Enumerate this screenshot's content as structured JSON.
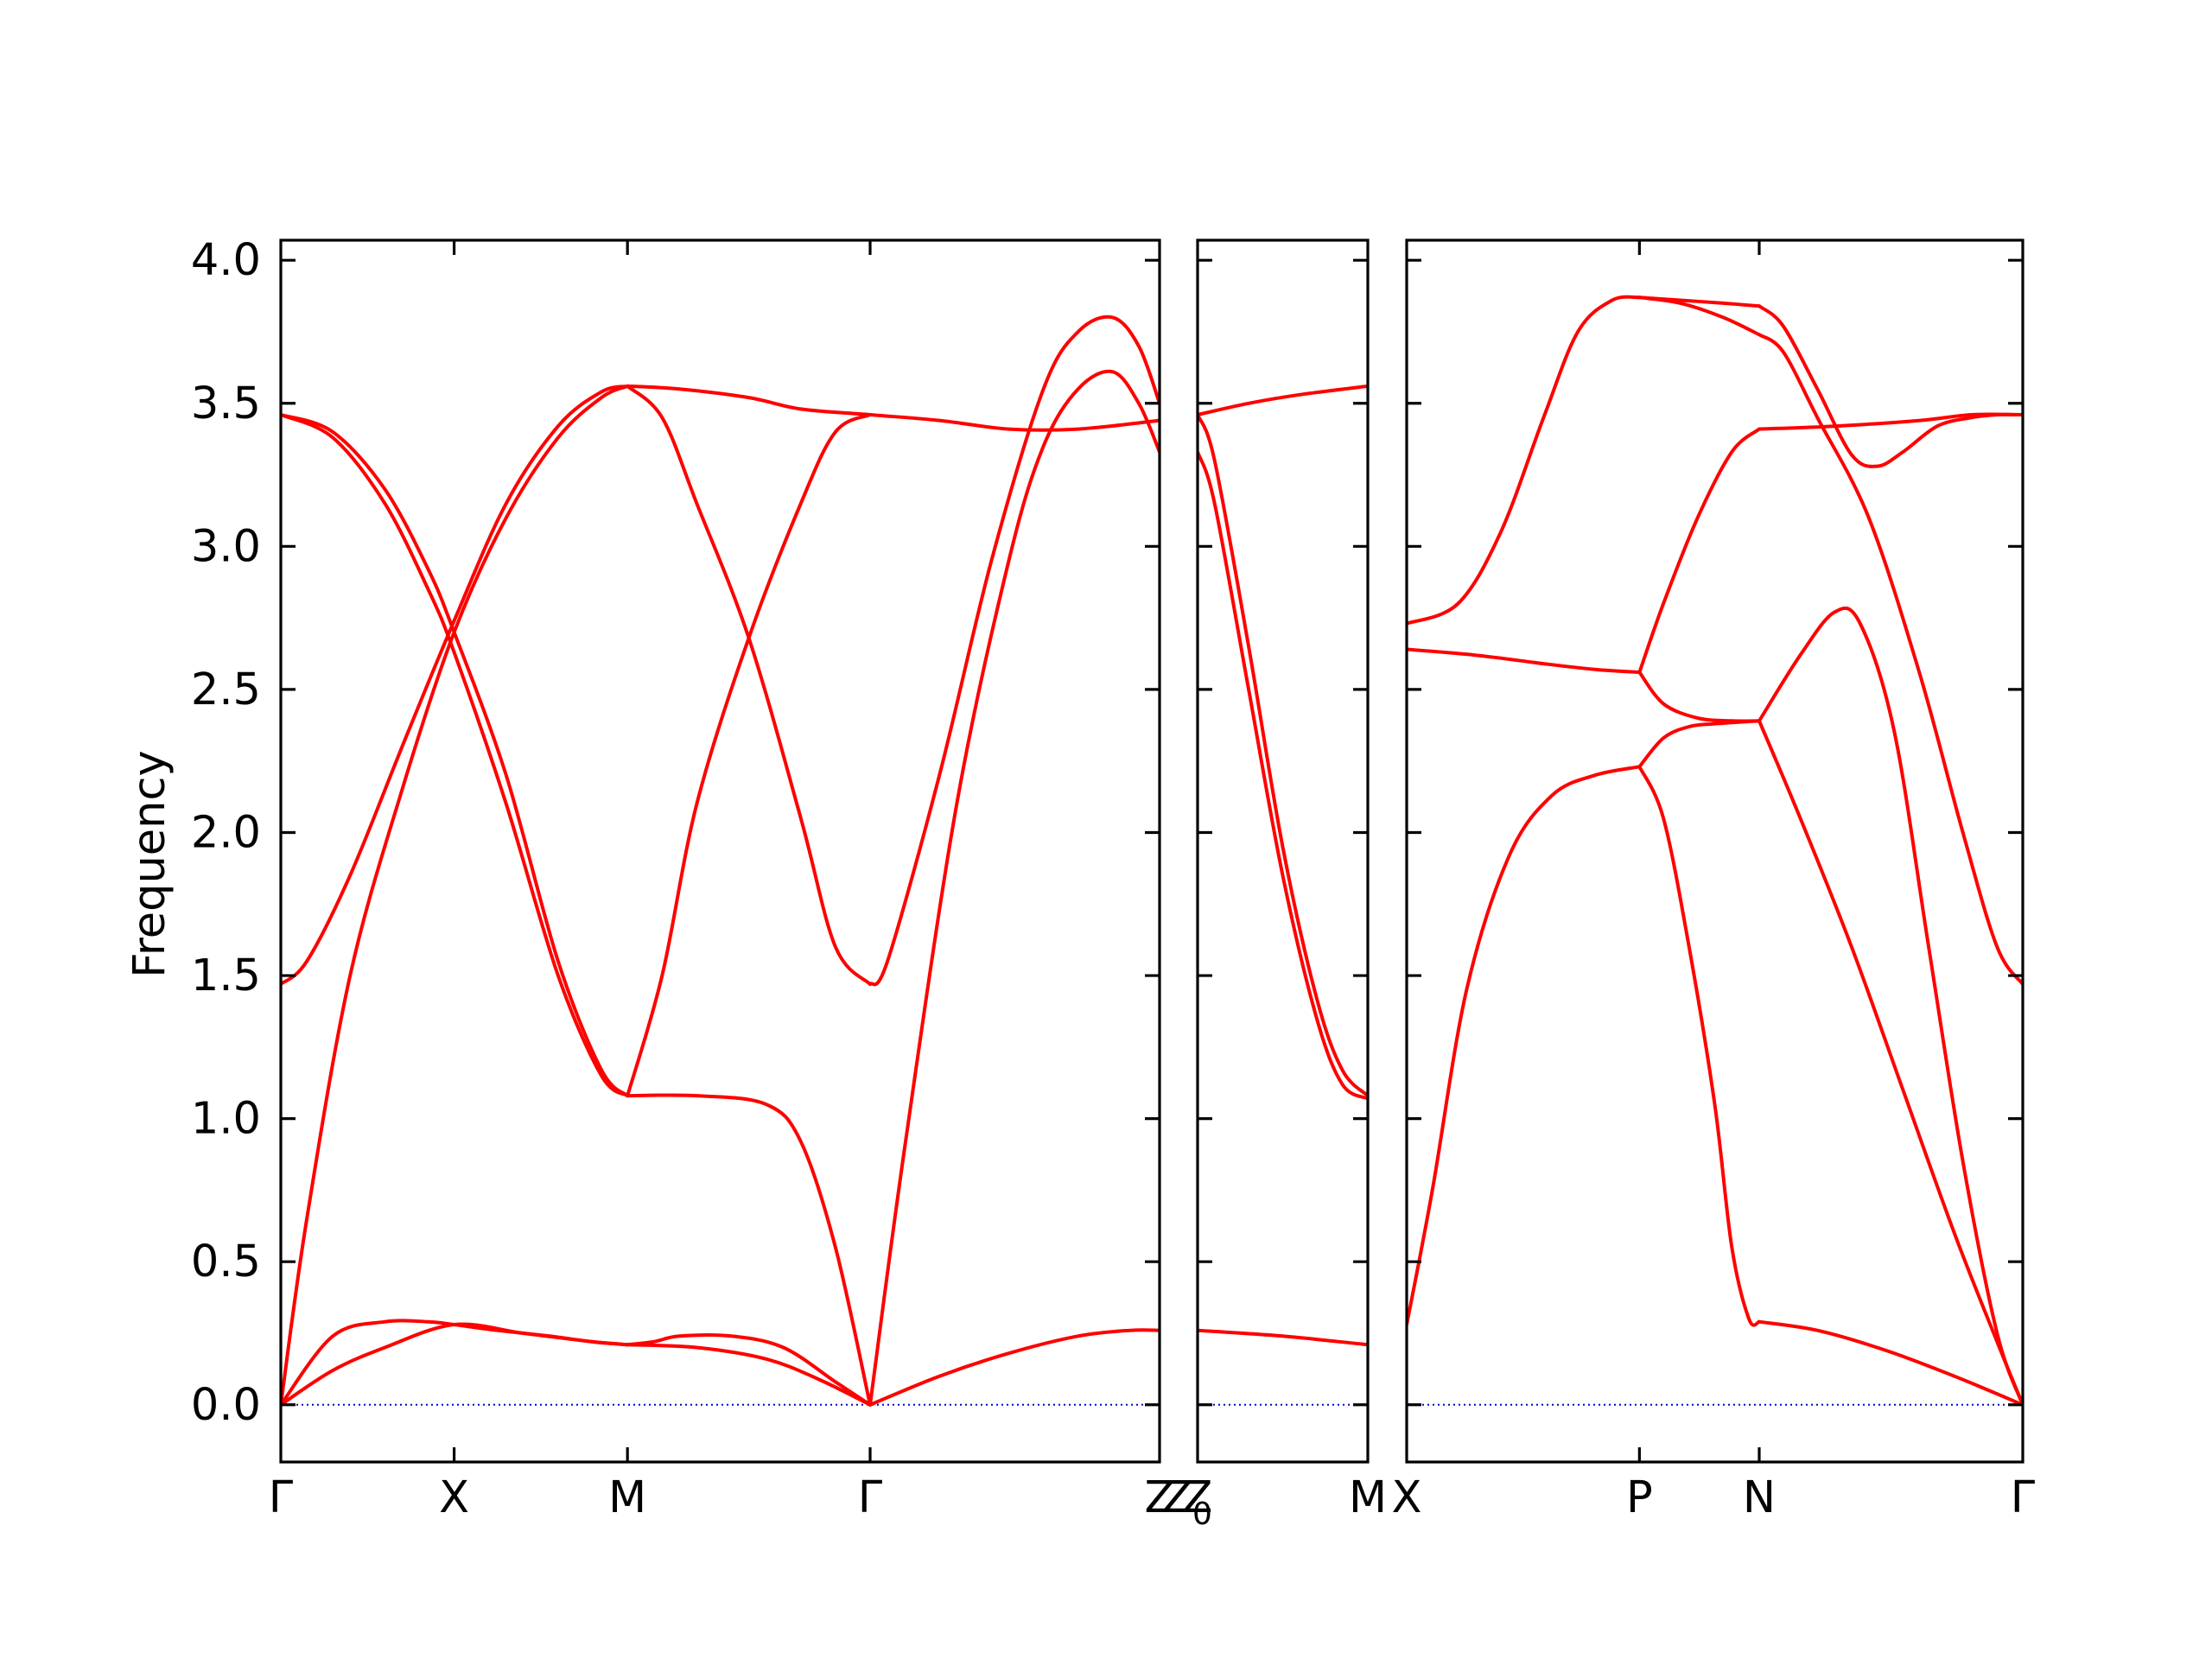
{
  "chart_data": {
    "type": "line",
    "ylabel": "Frequency",
    "ylim": [
      -0.2,
      4.07
    ],
    "yticks": [
      "0.0",
      "0.5",
      "1.0",
      "1.5",
      "2.0",
      "2.5",
      "3.0",
      "3.5",
      "4.0"
    ],
    "colors": {
      "bands": "#ff0000",
      "zero_line": "#0000cd"
    },
    "panels": [
      {
        "name": "path-1",
        "xrange": [
          0,
          5.07
        ],
        "ticks": [
          {
            "x": 0,
            "label": "Γ"
          },
          {
            "x": 1.0,
            "label": "X"
          },
          {
            "x": 2.0,
            "label": "M"
          },
          {
            "x": 3.4,
            "label": "Γ"
          },
          {
            "x": 5.07,
            "label": "Z"
          }
        ],
        "bands": [
          {
            "x": [
              0,
              0.3,
              0.6,
              0.85,
              1.0,
              1.25,
              1.55,
              1.8,
              2.0
            ],
            "y": [
              0,
              0.24,
              0.29,
              0.29,
              0.28,
              0.26,
              0.24,
              0.22,
              0.21
            ]
          },
          {
            "x": [
              0,
              0.3,
              0.6,
              1.0,
              1.4,
              1.8,
              2.0
            ],
            "y": [
              0,
              0.12,
              0.2,
              0.28,
              0.25,
              0.22,
              0.21
            ]
          },
          {
            "x": [
              2.0,
              2.15,
              2.3,
              2.6,
              2.9,
              3.2,
              3.4
            ],
            "y": [
              0.21,
              0.22,
              0.24,
              0.24,
              0.2,
              0.08,
              0
            ]
          },
          {
            "x": [
              2.0,
              2.4,
              2.8,
              3.1,
              3.4
            ],
            "y": [
              0.21,
              0.2,
              0.16,
              0.09,
              0
            ]
          },
          {
            "x": [
              3.4,
              3.8,
              4.2,
              4.6,
              4.9,
              5.07
            ],
            "y": [
              0,
              0.1,
              0.18,
              0.24,
              0.26,
              0.26
            ]
          },
          {
            "x": [
              0,
              0.15,
              0.4,
              0.7,
              1.0,
              1.3,
              1.6,
              1.85,
              2.0
            ],
            "y": [
              0,
              0.65,
              1.5,
              2.15,
              2.7,
              3.1,
              3.38,
              3.52,
              3.56
            ]
          },
          {
            "x": [
              0,
              0.15,
              0.4,
              0.7,
              1.0,
              1.3,
              1.6,
              1.85,
              2.0
            ],
            "y": [
              1.47,
              1.55,
              1.85,
              2.3,
              2.74,
              3.15,
              3.42,
              3.54,
              3.56
            ]
          },
          {
            "x": [
              0,
              0.3,
              0.6,
              0.85,
              1.0,
              1.3,
              1.6,
              1.85,
              2.0
            ],
            "y": [
              3.46,
              3.38,
              3.15,
              2.85,
              2.63,
              2.1,
              1.5,
              1.15,
              1.08
            ]
          },
          {
            "x": [
              0,
              0.3,
              0.6,
              0.85,
              1.0,
              1.3,
              1.6,
              1.85,
              2.0
            ],
            "y": [
              3.46,
              3.4,
              3.2,
              2.92,
              2.7,
              2.2,
              1.55,
              1.17,
              1.08
            ]
          },
          {
            "x": [
              2.0,
              2.3,
              2.7,
              3.0,
              3.4,
              3.8,
              4.2,
              4.6,
              5.07
            ],
            "y": [
              3.56,
              3.55,
              3.52,
              3.48,
              3.46,
              3.44,
              3.41,
              3.41,
              3.44
            ]
          },
          {
            "x": [
              2.0,
              2.2,
              2.4,
              2.7,
              3.0,
              3.2,
              3.4
            ],
            "y": [
              3.56,
              3.45,
              3.15,
              2.68,
              2.05,
              1.6,
              1.47
            ]
          },
          {
            "x": [
              2.0,
              2.2,
              2.4,
              2.7,
              3.0,
              3.2,
              3.4
            ],
            "y": [
              1.08,
              1.5,
              2.1,
              2.68,
              3.15,
              3.4,
              3.46
            ]
          },
          {
            "x": [
              2.0,
              2.4,
              2.8,
              3.0,
              3.2,
              3.4
            ],
            "y": [
              1.08,
              1.08,
              1.05,
              0.92,
              0.55,
              0
            ]
          },
          {
            "x": [
              3.4,
              3.5,
              3.8,
              4.1,
              4.4,
              4.6,
              4.8,
              4.95,
              5.07
            ],
            "y": [
              1.47,
              1.55,
              2.2,
              2.95,
              3.55,
              3.75,
              3.8,
              3.7,
              3.5
            ]
          },
          {
            "x": [
              3.4,
              3.6,
              3.9,
              4.2,
              4.4,
              4.6,
              4.8,
              4.95,
              5.07
            ],
            "y": [
              0,
              0.9,
              2.1,
              2.95,
              3.35,
              3.55,
              3.61,
              3.5,
              3.33
            ]
          }
        ]
      },
      {
        "name": "path-2",
        "xrange": [
          0,
          1
        ],
        "ticks": [
          {
            "x": 0,
            "label": "Z"
          },
          {
            "x": 1,
            "label": "M"
          }
        ],
        "bands": [
          {
            "x": [
              0,
              0.5,
              1
            ],
            "y": [
              0.26,
              0.24,
              0.21
            ]
          },
          {
            "x": [
              0,
              0.3,
              0.6,
              1
            ],
            "y": [
              3.46,
              3.5,
              3.53,
              3.56
            ]
          },
          {
            "x": [
              0,
              0.1,
              0.3,
              0.5,
              0.7,
              0.85,
              1
            ],
            "y": [
              3.46,
              3.3,
              2.65,
              1.95,
              1.42,
              1.17,
              1.08
            ]
          },
          {
            "x": [
              0,
              0.1,
              0.3,
              0.5,
              0.7,
              0.85,
              1
            ],
            "y": [
              3.33,
              3.15,
              2.5,
              1.85,
              1.35,
              1.12,
              1.07
            ]
          }
        ]
      },
      {
        "name": "path-3",
        "xrange": [
          0,
          3.6
        ],
        "ticks": [
          {
            "x": 0,
            "label": "X"
          },
          {
            "x": 1.36,
            "label": "P"
          },
          {
            "x": 2.06,
            "label": "N"
          },
          {
            "x": 3.6,
            "label": "Γ"
          }
        ],
        "bands": [
          {
            "x": [
              0,
              0.15,
              0.35,
              0.6,
              0.85,
              1.1,
              1.36
            ],
            "y": [
              0.28,
              0.75,
              1.45,
              1.92,
              2.13,
              2.2,
              2.23
            ]
          },
          {
            "x": [
              1.36,
              1.5,
              1.65,
              1.8,
              2.06
            ],
            "y": [
              2.23,
              2.33,
              2.37,
              2.38,
              2.39
            ]
          },
          {
            "x": [
              1.36,
              1.5,
              1.7,
              1.9,
              2.06
            ],
            "y": [
              2.56,
              2.45,
              2.4,
              2.39,
              2.39
            ]
          },
          {
            "x": [
              0,
              0.4,
              0.8,
              1.1,
              1.36
            ],
            "y": [
              2.64,
              2.62,
              2.59,
              2.57,
              2.56
            ]
          },
          {
            "x": [
              1.36,
              1.5,
              1.7,
              1.9,
              2.06
            ],
            "y": [
              2.56,
              2.8,
              3.1,
              3.33,
              3.41
            ]
          },
          {
            "x": [
              2.06,
              2.5,
              3.0,
              3.3,
              3.6
            ],
            "y": [
              3.41,
              3.42,
              3.44,
              3.46,
              3.46
            ]
          },
          {
            "x": [
              0,
              0.3,
              0.55,
              0.8,
              1.0,
              1.2,
              1.36
            ],
            "y": [
              2.73,
              2.8,
              3.05,
              3.45,
              3.75,
              3.86,
              3.87
            ]
          },
          {
            "x": [
              1.36,
              1.6,
              1.85,
              2.06
            ],
            "y": [
              3.87,
              3.86,
              3.85,
              3.84
            ]
          },
          {
            "x": [
              1.36,
              1.6,
              1.85,
              2.06
            ],
            "y": [
              3.87,
              3.85,
              3.8,
              3.74
            ]
          },
          {
            "x": [
              2.06,
              2.2,
              2.4,
              2.6,
              2.75,
              2.9,
              3.1,
              3.3,
              3.45,
              3.6
            ],
            "y": [
              3.84,
              3.77,
              3.55,
              3.32,
              3.28,
              3.33,
              3.42,
              3.45,
              3.46,
              3.46
            ]
          },
          {
            "x": [
              2.06,
              2.2,
              2.4,
              2.7,
              3.0,
              3.25,
              3.45,
              3.6
            ],
            "y": [
              3.74,
              3.68,
              3.45,
              3.1,
              2.55,
              2.0,
              1.6,
              1.47
            ]
          },
          {
            "x": [
              2.06,
              2.3,
              2.5,
              2.65,
              2.85,
              3.05,
              3.25,
              3.45,
              3.6
            ],
            "y": [
              2.39,
              2.62,
              2.77,
              2.73,
              2.35,
              1.6,
              0.85,
              0.25,
              0
            ]
          },
          {
            "x": [
              2.06,
              2.3,
              2.6,
              2.9,
              3.2,
              3.45,
              3.6
            ],
            "y": [
              2.39,
              2.05,
              1.6,
              1.1,
              0.6,
              0.22,
              0
            ]
          },
          {
            "x": [
              1.36,
              1.5,
              1.65,
              1.8,
              1.9,
              2.0,
              2.06
            ],
            "y": [
              2.23,
              2.05,
              1.6,
              1.05,
              0.55,
              0.3,
              0.29
            ]
          },
          {
            "x": [
              2.06,
              2.4,
              2.8,
              3.2,
              3.6
            ],
            "y": [
              0.29,
              0.26,
              0.19,
              0.1,
              0
            ]
          }
        ]
      }
    ],
    "subscript_label": {
      "base": "Z",
      "sub": "0"
    }
  }
}
